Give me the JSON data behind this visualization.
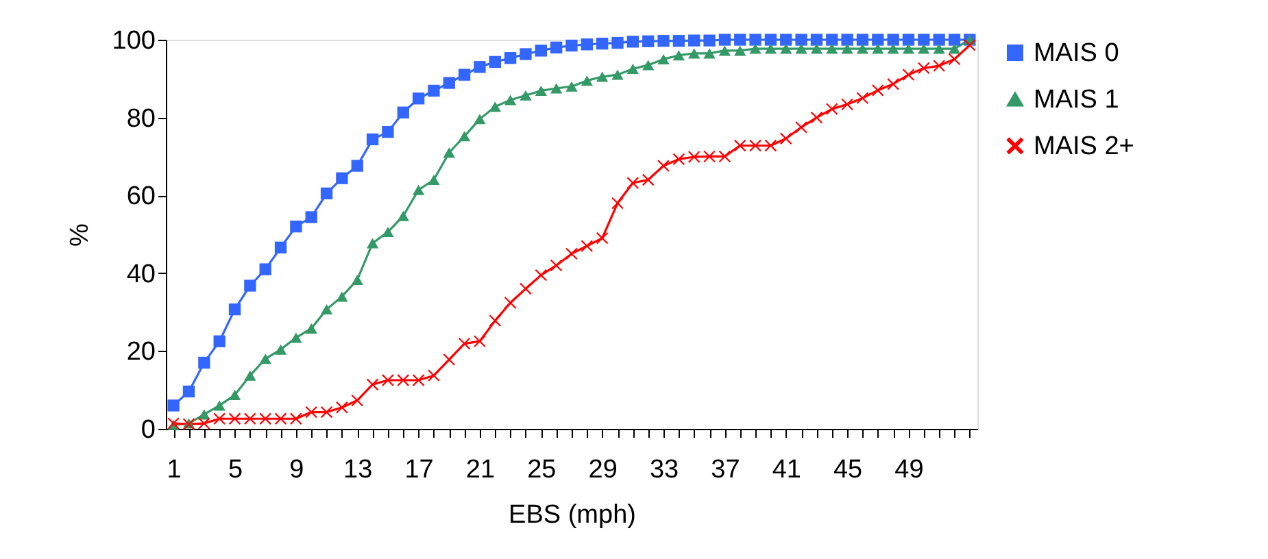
{
  "chart_data": {
    "type": "line",
    "xlabel": "EBS (mph)",
    "ylabel": "%",
    "categories": [
      "1",
      null,
      null,
      null,
      "5",
      null,
      null,
      null,
      "9",
      null,
      null,
      null,
      "13",
      null,
      null,
      null,
      "17",
      null,
      null,
      null,
      "21",
      null,
      null,
      null,
      "25",
      null,
      null,
      null,
      "29",
      null,
      null,
      null,
      "33",
      null,
      null,
      null,
      "37",
      null,
      null,
      null,
      "41",
      null,
      null,
      null,
      "45",
      null,
      null,
      null,
      "49",
      null,
      null,
      null,
      null
    ],
    "series": [
      {
        "name": "MAIS 0",
        "color": "#3366ff",
        "marker": "square",
        "values": [
          6,
          9.6,
          17,
          22.5,
          30.7,
          36.8,
          41,
          46.6,
          52,
          54.4,
          60.5,
          64.4,
          67.6,
          74.4,
          76.3,
          81.3,
          84.9,
          86.9,
          88.9,
          91,
          93,
          94.3,
          95.3,
          96.3,
          97.2,
          98,
          98.5,
          98.8,
          99,
          99.2,
          99.5,
          99.6,
          99.7,
          99.7,
          99.8,
          99.8,
          100,
          100,
          100,
          100,
          100,
          100,
          100,
          100,
          100,
          100,
          100,
          100,
          100,
          100,
          100,
          100,
          100
        ]
      },
      {
        "name": "MAIS 1",
        "color": "#339966",
        "marker": "triangle",
        "values": [
          1,
          1.4,
          3.7,
          6,
          8.7,
          13.7,
          18,
          20.4,
          23.4,
          25.8,
          30.7,
          34,
          38.3,
          47.7,
          50.6,
          54.7,
          61.4,
          64,
          71,
          75.2,
          79.6,
          82.8,
          84.5,
          85.7,
          86.9,
          87.5,
          88,
          89.5,
          90.5,
          91,
          92.5,
          93.5,
          95,
          96,
          96.5,
          96.5,
          97.2,
          97.2,
          97.7,
          97.7,
          97.7,
          97.7,
          97.7,
          97.7,
          97.7,
          97.7,
          97.7,
          97.7,
          97.7,
          97.7,
          97.7,
          97.7,
          100
        ]
      },
      {
        "name": "MAIS 2+",
        "color": "#ff0000",
        "marker": "cross",
        "values": [
          1.4,
          1.2,
          1.4,
          2.6,
          2.6,
          2.6,
          2.6,
          2.6,
          2.6,
          4.3,
          4.3,
          5.5,
          7.3,
          11.4,
          12.5,
          12.5,
          12.5,
          13.7,
          17.8,
          21.9,
          22.5,
          27.8,
          32.4,
          36,
          39.5,
          42,
          45,
          47,
          49,
          58,
          63.2,
          64,
          67.6,
          69.3,
          69.9,
          70,
          70,
          72.8,
          72.8,
          72.8,
          74.6,
          77.5,
          80,
          82.2,
          83.4,
          85,
          87,
          88.6,
          91,
          92.7,
          93.3,
          95,
          98.6
        ]
      }
    ],
    "ylim": [
      0,
      100
    ],
    "yticks": [
      0,
      20,
      40,
      60,
      80,
      100
    ],
    "grid": false,
    "legend": "right",
    "line_style": "solid"
  }
}
